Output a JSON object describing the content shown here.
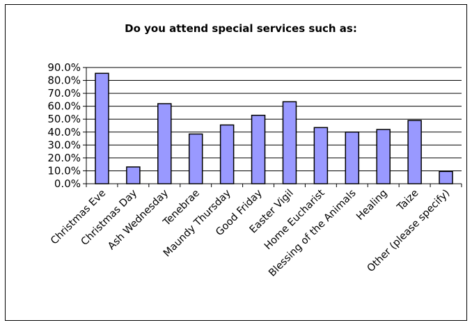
{
  "chart_data": {
    "type": "bar",
    "title": "Do you attend special services such as:",
    "xlabel": "",
    "ylabel": "",
    "categories": [
      "Christmas Eve",
      "Christmas Day",
      "Ash Wednesday",
      "Tenebrae",
      "Maundy Thursday",
      "Good Friday",
      "Easter Vigil",
      "Home Eucharist",
      "Blessing of the Animals",
      "Healing",
      "Taize",
      "Other (please specify)"
    ],
    "values": [
      85.5,
      13.0,
      62.0,
      38.5,
      45.5,
      53.0,
      63.5,
      43.5,
      40.0,
      42.0,
      49.0,
      9.5
    ],
    "ylim": [
      0,
      90
    ],
    "yticks": [
      "0.0%",
      "10.0%",
      "20.0%",
      "30.0%",
      "40.0%",
      "50.0%",
      "60.0%",
      "70.0%",
      "80.0%",
      "90.0%"
    ],
    "grid": true,
    "legend": "none",
    "bar_color": "#9999ff",
    "bar_border_color": "#000000"
  }
}
